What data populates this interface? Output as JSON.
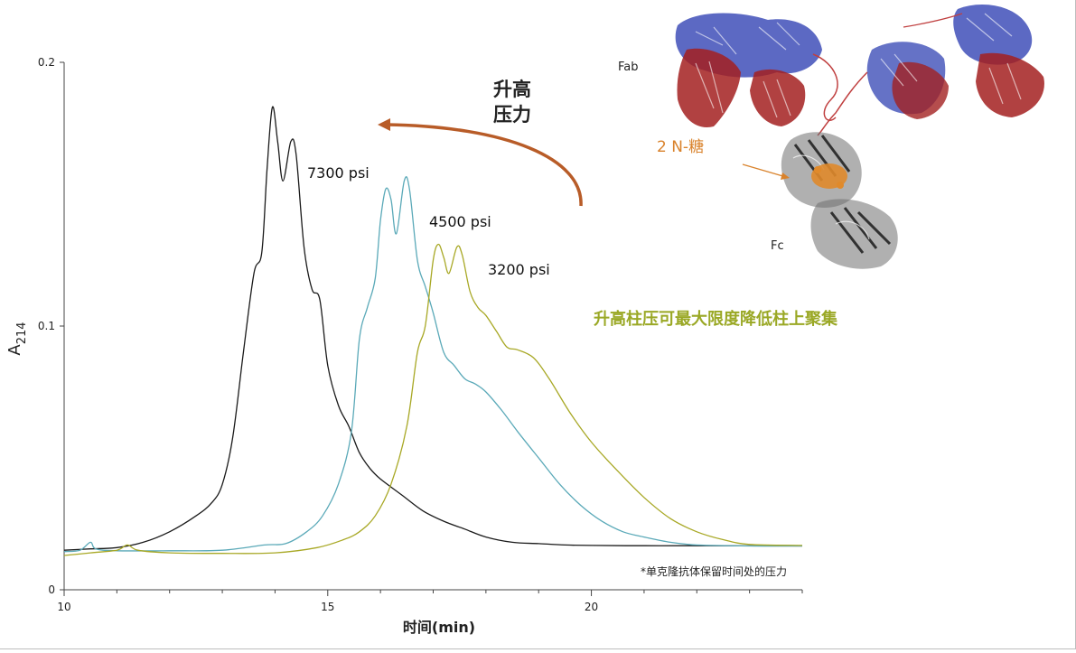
{
  "chart_data": {
    "type": "line",
    "xlabel": "时间(min)",
    "ylabel_main": "A",
    "ylabel_sub": "214",
    "xlim": [
      10,
      24
    ],
    "ylim": [
      0,
      0.2
    ],
    "x_ticks": [
      10,
      15,
      20
    ],
    "x_tick_labels": [
      "10",
      "15",
      "20"
    ],
    "y_ticks": [
      0,
      0.1,
      0.2
    ],
    "y_tick_labels": [
      "0",
      "0.1",
      "0.2"
    ],
    "grid": false,
    "series": [
      {
        "name": "7300 psi",
        "color": "#1a1a1a",
        "points": [
          [
            10,
            0.015
          ],
          [
            10.5,
            0.0155
          ],
          [
            11,
            0.016
          ],
          [
            11.5,
            0.018
          ],
          [
            12,
            0.022
          ],
          [
            12.5,
            0.028
          ],
          [
            12.8,
            0.033
          ],
          [
            13.0,
            0.04
          ],
          [
            13.2,
            0.058
          ],
          [
            13.4,
            0.09
          ],
          [
            13.6,
            0.12
          ],
          [
            13.75,
            0.128
          ],
          [
            13.85,
            0.16
          ],
          [
            13.95,
            0.183
          ],
          [
            14.05,
            0.17
          ],
          [
            14.15,
            0.155
          ],
          [
            14.3,
            0.17
          ],
          [
            14.4,
            0.165
          ],
          [
            14.55,
            0.13
          ],
          [
            14.7,
            0.114
          ],
          [
            14.85,
            0.11
          ],
          [
            15.0,
            0.085
          ],
          [
            15.2,
            0.07
          ],
          [
            15.4,
            0.062
          ],
          [
            15.6,
            0.052
          ],
          [
            15.8,
            0.046
          ],
          [
            16.0,
            0.042
          ],
          [
            16.4,
            0.036
          ],
          [
            16.8,
            0.03
          ],
          [
            17.2,
            0.026
          ],
          [
            17.6,
            0.023
          ],
          [
            18.0,
            0.02
          ],
          [
            18.5,
            0.018
          ],
          [
            19.0,
            0.0175
          ],
          [
            19.5,
            0.017
          ],
          [
            20,
            0.0168
          ],
          [
            21,
            0.0167
          ],
          [
            22,
            0.0167
          ],
          [
            24,
            0.0166
          ]
        ]
      },
      {
        "name": "4500 psi",
        "color": "#5aa9b8",
        "points": [
          [
            10,
            0.0145
          ],
          [
            10.3,
            0.015
          ],
          [
            10.5,
            0.018
          ],
          [
            10.6,
            0.0155
          ],
          [
            11,
            0.0148
          ],
          [
            12,
            0.0148
          ],
          [
            13,
            0.015
          ],
          [
            13.8,
            0.017
          ],
          [
            14.2,
            0.0175
          ],
          [
            14.6,
            0.022
          ],
          [
            14.9,
            0.028
          ],
          [
            15.2,
            0.04
          ],
          [
            15.45,
            0.06
          ],
          [
            15.6,
            0.095
          ],
          [
            15.75,
            0.107
          ],
          [
            15.9,
            0.118
          ],
          [
            16.0,
            0.14
          ],
          [
            16.1,
            0.152
          ],
          [
            16.2,
            0.148
          ],
          [
            16.3,
            0.135
          ],
          [
            16.45,
            0.155
          ],
          [
            16.55,
            0.152
          ],
          [
            16.7,
            0.125
          ],
          [
            16.85,
            0.115
          ],
          [
            17.0,
            0.105
          ],
          [
            17.2,
            0.09
          ],
          [
            17.4,
            0.085
          ],
          [
            17.6,
            0.08
          ],
          [
            17.8,
            0.078
          ],
          [
            18.0,
            0.075
          ],
          [
            18.3,
            0.068
          ],
          [
            18.6,
            0.06
          ],
          [
            19.0,
            0.05
          ],
          [
            19.4,
            0.04
          ],
          [
            19.8,
            0.032
          ],
          [
            20.2,
            0.026
          ],
          [
            20.6,
            0.022
          ],
          [
            21.0,
            0.02
          ],
          [
            21.5,
            0.018
          ],
          [
            22,
            0.017
          ],
          [
            23,
            0.0166
          ],
          [
            24,
            0.0166
          ]
        ]
      },
      {
        "name": "3200 psi",
        "color": "#a8a825",
        "points": [
          [
            10,
            0.013
          ],
          [
            10.5,
            0.014
          ],
          [
            11,
            0.015
          ],
          [
            11.2,
            0.017
          ],
          [
            11.4,
            0.015
          ],
          [
            12,
            0.014
          ],
          [
            13,
            0.0138
          ],
          [
            14,
            0.014
          ],
          [
            14.8,
            0.016
          ],
          [
            15.3,
            0.019
          ],
          [
            15.6,
            0.022
          ],
          [
            15.9,
            0.028
          ],
          [
            16.2,
            0.04
          ],
          [
            16.5,
            0.062
          ],
          [
            16.7,
            0.09
          ],
          [
            16.85,
            0.1
          ],
          [
            17.0,
            0.125
          ],
          [
            17.1,
            0.131
          ],
          [
            17.2,
            0.126
          ],
          [
            17.3,
            0.12
          ],
          [
            17.45,
            0.13
          ],
          [
            17.55,
            0.127
          ],
          [
            17.7,
            0.113
          ],
          [
            17.85,
            0.107
          ],
          [
            18.0,
            0.104
          ],
          [
            18.2,
            0.098
          ],
          [
            18.4,
            0.092
          ],
          [
            18.6,
            0.091
          ],
          [
            18.9,
            0.088
          ],
          [
            19.2,
            0.08
          ],
          [
            19.6,
            0.067
          ],
          [
            20.0,
            0.056
          ],
          [
            20.5,
            0.045
          ],
          [
            21.0,
            0.035
          ],
          [
            21.5,
            0.027
          ],
          [
            22.0,
            0.022
          ],
          [
            22.5,
            0.019
          ],
          [
            23,
            0.0172
          ],
          [
            24,
            0.0168
          ]
        ]
      }
    ],
    "annotations": {
      "arrow_label_line1": "升高",
      "arrow_label_line2": "压力",
      "arrow_color": "#b85c28",
      "conclusion": "升高柱压可最大限度降低柱上聚集",
      "conclusion_color": "#9aa825",
      "footnote": "*单克隆抗体保留时间处的压力",
      "structure_fab": "Fab",
      "structure_fc": "Fc",
      "structure_glycan": "2 N-糖",
      "glycan_color": "#d9822b"
    }
  }
}
